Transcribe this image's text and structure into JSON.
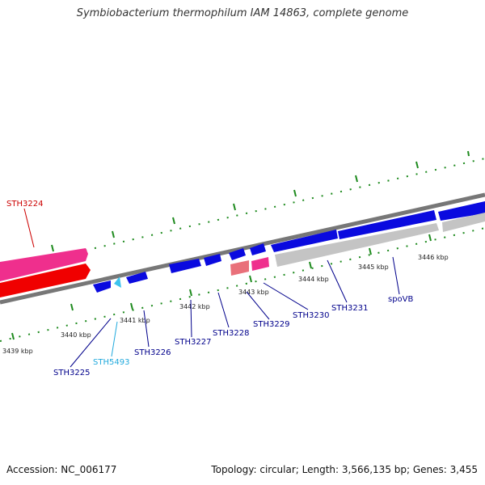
{
  "title": "Symbiobacterium thermophilum IAM 14863, complete genome",
  "footer": {
    "accession": "Accession: NC_006177",
    "summary": "Topology: circular; Length: 3,566,135 bp; Genes: 3,455"
  },
  "colors": {
    "forward_cds": "#0a0adf",
    "reverse_cds": "#0a0adf",
    "pink_gene": "#ef2f8d",
    "red_gene": "#f00000",
    "salmon_gene": "#e9707a",
    "grey_gene": "#c4c4c4",
    "cyan_gene": "#3cc3ee",
    "backbone": "#777777",
    "tick": "#1d8a1d",
    "label_dark_blue": "#00008b",
    "label_cyan": "#22aadd",
    "label_red": "#cc0000"
  },
  "scale_labels": [
    "3439 kbp",
    "3440 kbp",
    "3441 kbp",
    "3442 kbp",
    "3443 kbp",
    "3444 kbp",
    "3445 kbp",
    "3446 kbp"
  ],
  "gene_labels": {
    "sth3224": "STH3224",
    "sth3225": "STH3225",
    "sth5493": "STH5493",
    "sth3226": "STH3226",
    "sth3227": "STH3227",
    "sth3228": "STH3228",
    "sth3229": "STH3229",
    "sth3230": "STH3230",
    "sth3231": "STH3231",
    "spovb": "spoVB"
  }
}
